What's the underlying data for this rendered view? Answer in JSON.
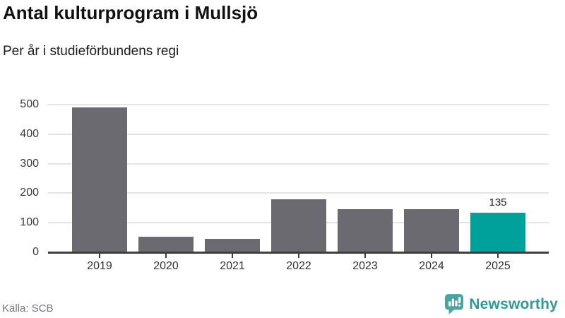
{
  "header": {
    "title": "Antal kulturprogram i Mullsjö",
    "subtitle": "Per år i studieförbundens regi"
  },
  "chart_data": {
    "type": "bar",
    "categories": [
      "2019",
      "2020",
      "2021",
      "2022",
      "2023",
      "2024",
      "2025"
    ],
    "values": [
      490,
      52,
      45,
      180,
      145,
      145,
      135
    ],
    "title": "Antal kulturprogram i Mullsjö",
    "subtitle": "Per år i studieförbundens regi",
    "xlabel": "",
    "ylabel": "",
    "ylim": [
      0,
      500
    ],
    "yticks": [
      0,
      100,
      200,
      300,
      400,
      500
    ],
    "grid": true,
    "legend": false,
    "bar_color": "#6b6a70",
    "highlight": {
      "category": "2025",
      "color": "#00a09b",
      "value_label": "135"
    }
  },
  "footer": {
    "source": "Källa: SCB",
    "brand": "Newsworthy"
  },
  "colors": {
    "grid": "#e4e4e4",
    "axis": "#3d3d3d",
    "logo_teal": "#4aa5a1",
    "wordmark_teal": "#2d9c97"
  }
}
